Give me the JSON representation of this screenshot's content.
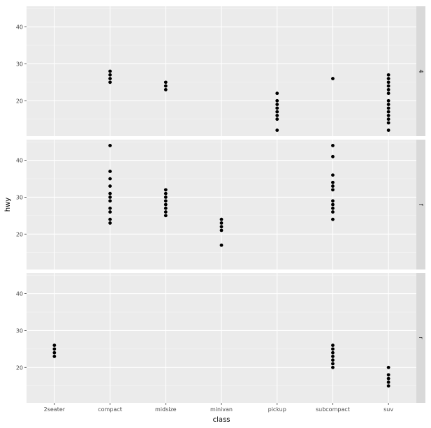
{
  "chart_data": {
    "type": "scatter",
    "xlabel": "class",
    "ylabel": "hwy",
    "categories": [
      "2seater",
      "compact",
      "midsize",
      "minivan",
      "pickup",
      "subcompact",
      "suv"
    ],
    "yticks": [
      20,
      30,
      40
    ],
    "ylim": [
      10.4,
      45.6
    ],
    "grid": true,
    "facet_by": "drv",
    "facets": [
      {
        "label": "4",
        "points": [
          {
            "x": "compact",
            "y": 28
          },
          {
            "x": "compact",
            "y": 27
          },
          {
            "x": "compact",
            "y": 26
          },
          {
            "x": "compact",
            "y": 25
          },
          {
            "x": "midsize",
            "y": 25
          },
          {
            "x": "midsize",
            "y": 24
          },
          {
            "x": "midsize",
            "y": 23
          },
          {
            "x": "pickup",
            "y": 22
          },
          {
            "x": "pickup",
            "y": 20
          },
          {
            "x": "pickup",
            "y": 19
          },
          {
            "x": "pickup",
            "y": 18
          },
          {
            "x": "pickup",
            "y": 17
          },
          {
            "x": "pickup",
            "y": 16
          },
          {
            "x": "pickup",
            "y": 15
          },
          {
            "x": "pickup",
            "y": 12
          },
          {
            "x": "subcompact",
            "y": 26
          },
          {
            "x": "suv",
            "y": 27
          },
          {
            "x": "suv",
            "y": 26
          },
          {
            "x": "suv",
            "y": 25
          },
          {
            "x": "suv",
            "y": 24
          },
          {
            "x": "suv",
            "y": 23
          },
          {
            "x": "suv",
            "y": 22
          },
          {
            "x": "suv",
            "y": 20
          },
          {
            "x": "suv",
            "y": 19
          },
          {
            "x": "suv",
            "y": 18
          },
          {
            "x": "suv",
            "y": 17
          },
          {
            "x": "suv",
            "y": 16
          },
          {
            "x": "suv",
            "y": 15
          },
          {
            "x": "suv",
            "y": 14
          },
          {
            "x": "suv",
            "y": 12
          }
        ]
      },
      {
        "label": "f",
        "points": [
          {
            "x": "compact",
            "y": 44
          },
          {
            "x": "compact",
            "y": 37
          },
          {
            "x": "compact",
            "y": 35
          },
          {
            "x": "compact",
            "y": 33
          },
          {
            "x": "compact",
            "y": 31
          },
          {
            "x": "compact",
            "y": 30
          },
          {
            "x": "compact",
            "y": 29
          },
          {
            "x": "compact",
            "y": 27
          },
          {
            "x": "compact",
            "y": 26
          },
          {
            "x": "compact",
            "y": 24
          },
          {
            "x": "compact",
            "y": 23
          },
          {
            "x": "midsize",
            "y": 32
          },
          {
            "x": "midsize",
            "y": 31
          },
          {
            "x": "midsize",
            "y": 30
          },
          {
            "x": "midsize",
            "y": 29
          },
          {
            "x": "midsize",
            "y": 28
          },
          {
            "x": "midsize",
            "y": 27
          },
          {
            "x": "midsize",
            "y": 26
          },
          {
            "x": "midsize",
            "y": 25
          },
          {
            "x": "minivan",
            "y": 24
          },
          {
            "x": "minivan",
            "y": 23
          },
          {
            "x": "minivan",
            "y": 22
          },
          {
            "x": "minivan",
            "y": 21
          },
          {
            "x": "minivan",
            "y": 17
          },
          {
            "x": "subcompact",
            "y": 44
          },
          {
            "x": "subcompact",
            "y": 41
          },
          {
            "x": "subcompact",
            "y": 36
          },
          {
            "x": "subcompact",
            "y": 34
          },
          {
            "x": "subcompact",
            "y": 33
          },
          {
            "x": "subcompact",
            "y": 32
          },
          {
            "x": "subcompact",
            "y": 29
          },
          {
            "x": "subcompact",
            "y": 28
          },
          {
            "x": "subcompact",
            "y": 27
          },
          {
            "x": "subcompact",
            "y": 26
          },
          {
            "x": "subcompact",
            "y": 24
          }
        ]
      },
      {
        "label": "r",
        "points": [
          {
            "x": "2seater",
            "y": 26
          },
          {
            "x": "2seater",
            "y": 25
          },
          {
            "x": "2seater",
            "y": 24
          },
          {
            "x": "2seater",
            "y": 23
          },
          {
            "x": "subcompact",
            "y": 26
          },
          {
            "x": "subcompact",
            "y": 25
          },
          {
            "x": "subcompact",
            "y": 24
          },
          {
            "x": "subcompact",
            "y": 23
          },
          {
            "x": "subcompact",
            "y": 22
          },
          {
            "x": "subcompact",
            "y": 21
          },
          {
            "x": "subcompact",
            "y": 20
          },
          {
            "x": "suv",
            "y": 20
          },
          {
            "x": "suv",
            "y": 18
          },
          {
            "x": "suv",
            "y": 17
          },
          {
            "x": "suv",
            "y": 16
          },
          {
            "x": "suv",
            "y": 15
          }
        ]
      }
    ]
  },
  "colors": {
    "panel_background": "#EBEBEB",
    "grid_major": "#FFFFFF",
    "strip_background": "#D9D9D9",
    "point": "#000000",
    "tick_text": "#4D4D4D"
  }
}
